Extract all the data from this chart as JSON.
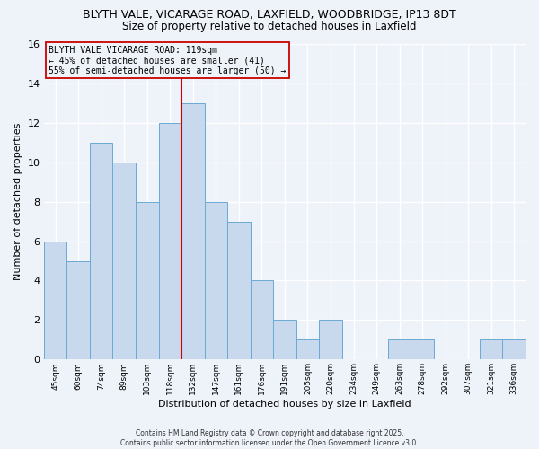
{
  "title": "BLYTH VALE, VICARAGE ROAD, LAXFIELD, WOODBRIDGE, IP13 8DT",
  "subtitle": "Size of property relative to detached houses in Laxfield",
  "xlabel": "Distribution of detached houses by size in Laxfield",
  "ylabel": "Number of detached properties",
  "bar_labels": [
    "45sqm",
    "60sqm",
    "74sqm",
    "89sqm",
    "103sqm",
    "118sqm",
    "132sqm",
    "147sqm",
    "161sqm",
    "176sqm",
    "191sqm",
    "205sqm",
    "220sqm",
    "234sqm",
    "249sqm",
    "263sqm",
    "278sqm",
    "292sqm",
    "307sqm",
    "321sqm",
    "336sqm"
  ],
  "bar_values": [
    6,
    5,
    11,
    10,
    8,
    12,
    13,
    8,
    7,
    4,
    2,
    1,
    2,
    0,
    0,
    1,
    1,
    0,
    0,
    1,
    1
  ],
  "bar_color": "#c8d9ee",
  "bar_edge_color": "#6aaad4",
  "vline_x": 5.5,
  "vline_color": "#cc0000",
  "ylim": [
    0,
    16
  ],
  "yticks": [
    0,
    2,
    4,
    6,
    8,
    10,
    12,
    14,
    16
  ],
  "annotation_lines": [
    "BLYTH VALE VICARAGE ROAD: 119sqm",
    "← 45% of detached houses are smaller (41)",
    "55% of semi-detached houses are larger (50) →"
  ],
  "annotation_box_edge": "#cc0000",
  "background_color": "#eef2f9",
  "grid_color": "#c8d4e8",
  "footer_line1": "Contains HM Land Registry data © Crown copyright and database right 2025.",
  "footer_line2": "Contains public sector information licensed under the Open Government Licence v3.0.",
  "title_fontsize": 9,
  "subtitle_fontsize": 8.5
}
